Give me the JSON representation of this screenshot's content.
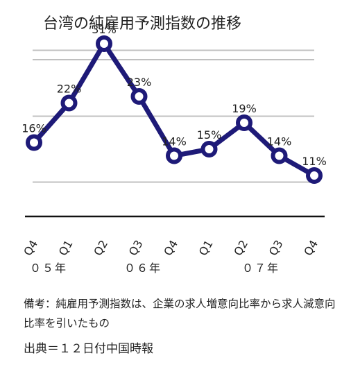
{
  "chart_data": {
    "type": "line",
    "title": "台湾の純雇用予測指数の推移",
    "categories": [
      "Q4",
      "Q1",
      "Q2",
      "Q3",
      "Q4",
      "Q1",
      "Q2",
      "Q3",
      "Q4"
    ],
    "year_groups": [
      {
        "label": "０５年",
        "start": 0,
        "end": 0
      },
      {
        "label": "０６年",
        "start": 1,
        "end": 4
      },
      {
        "label": "０７年",
        "start": 5,
        "end": 8
      }
    ],
    "series": [
      {
        "values": [
          16,
          22,
          31,
          23,
          14,
          15,
          19,
          14,
          11
        ],
        "labels": [
          "16%",
          "22%",
          "31%",
          "23%",
          "14%",
          "15%",
          "19%",
          "14%",
          "11%"
        ]
      }
    ],
    "ylim": [
      5,
      35
    ],
    "grid": true,
    "colors": {
      "line": "#1e1a78",
      "marker_fill": "#ffffff",
      "grid": "#c0c0c0",
      "baseline": "#111111"
    }
  },
  "note": "備考：純雇用予測指数は、企業の求人増意向比率から求人減意向比率を引いたもの",
  "source": "出典＝１２日付中国時報"
}
